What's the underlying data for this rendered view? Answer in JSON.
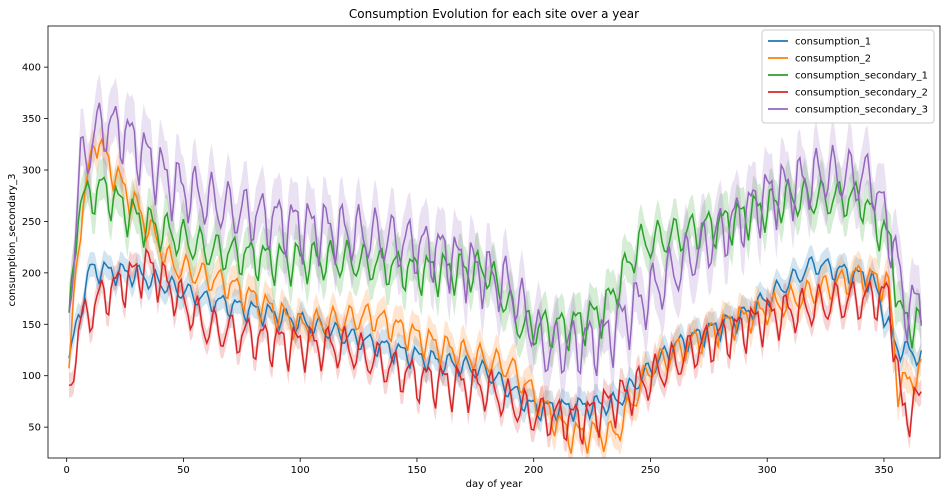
{
  "chart_data": {
    "type": "line",
    "title": "Consumption Evolution for each site over a year",
    "xlabel": "day of year",
    "ylabel": "consumption_secondary_3",
    "xlim": [
      -8,
      374
    ],
    "ylim": [
      20,
      440
    ],
    "xticks": [
      0,
      50,
      100,
      150,
      200,
      250,
      300,
      350
    ],
    "yticks": [
      50,
      100,
      150,
      200,
      250,
      300,
      350,
      400
    ],
    "grid": false,
    "legend_position": "top-right",
    "confidence_band": true,
    "x": {
      "start": 1,
      "end": 366,
      "step": 1
    },
    "series": [
      {
        "name": "consumption_1",
        "color": "#1f77b4",
        "keypoints": [
          [
            1,
            118
          ],
          [
            10,
            205
          ],
          [
            30,
            200
          ],
          [
            60,
            175
          ],
          [
            90,
            160
          ],
          [
            120,
            140
          ],
          [
            150,
            120
          ],
          [
            180,
            105
          ],
          [
            200,
            70
          ],
          [
            215,
            70
          ],
          [
            235,
            75
          ],
          [
            260,
            130
          ],
          [
            290,
            160
          ],
          [
            320,
            210
          ],
          [
            345,
            195
          ],
          [
            355,
            130
          ],
          [
            366,
            120
          ]
        ],
        "weekly_amplitude": 40,
        "band": 12
      },
      {
        "name": "consumption_2",
        "color": "#ff7f0e",
        "keypoints": [
          [
            1,
            105
          ],
          [
            5,
            235
          ],
          [
            12,
            335
          ],
          [
            20,
            300
          ],
          [
            30,
            265
          ],
          [
            45,
            210
          ],
          [
            70,
            190
          ],
          [
            100,
            150
          ],
          [
            130,
            160
          ],
          [
            160,
            130
          ],
          [
            190,
            110
          ],
          [
            205,
            70
          ],
          [
            215,
            45
          ],
          [
            235,
            45
          ],
          [
            250,
            110
          ],
          [
            280,
            150
          ],
          [
            310,
            175
          ],
          [
            340,
            200
          ],
          [
            352,
            190
          ],
          [
            356,
            90
          ],
          [
            366,
            105
          ]
        ],
        "weekly_amplitude": 55,
        "band": 15
      },
      {
        "name": "consumption_secondary_1",
        "color": "#2ca02c",
        "keypoints": [
          [
            1,
            150
          ],
          [
            5,
            270
          ],
          [
            15,
            285
          ],
          [
            30,
            255
          ],
          [
            60,
            225
          ],
          [
            90,
            215
          ],
          [
            120,
            215
          ],
          [
            150,
            205
          ],
          [
            180,
            205
          ],
          [
            195,
            150
          ],
          [
            215,
            150
          ],
          [
            230,
            165
          ],
          [
            245,
            230
          ],
          [
            280,
            250
          ],
          [
            310,
            275
          ],
          [
            340,
            275
          ],
          [
            353,
            230
          ],
          [
            357,
            160
          ],
          [
            366,
            150
          ]
        ],
        "weekly_amplitude": 75,
        "band": 20
      },
      {
        "name": "consumption_secondary_2",
        "color": "#d62728",
        "keypoints": [
          [
            1,
            78
          ],
          [
            5,
            150
          ],
          [
            15,
            180
          ],
          [
            35,
            210
          ],
          [
            60,
            150
          ],
          [
            90,
            135
          ],
          [
            120,
            130
          ],
          [
            150,
            100
          ],
          [
            180,
            90
          ],
          [
            200,
            65
          ],
          [
            220,
            60
          ],
          [
            240,
            85
          ],
          [
            270,
            130
          ],
          [
            300,
            160
          ],
          [
            330,
            175
          ],
          [
            352,
            180
          ],
          [
            358,
            65
          ],
          [
            366,
            80
          ]
        ],
        "weekly_amplitude": 80,
        "band": 12
      },
      {
        "name": "consumption_secondary_3",
        "color": "#9467bd",
        "keypoints": [
          [
            1,
            170
          ],
          [
            6,
            310
          ],
          [
            15,
            350
          ],
          [
            25,
            340
          ],
          [
            45,
            290
          ],
          [
            70,
            265
          ],
          [
            100,
            250
          ],
          [
            130,
            240
          ],
          [
            160,
            225
          ],
          [
            190,
            190
          ],
          [
            205,
            130
          ],
          [
            230,
            140
          ],
          [
            245,
            175
          ],
          [
            270,
            225
          ],
          [
            300,
            280
          ],
          [
            325,
            300
          ],
          [
            345,
            295
          ],
          [
            355,
            225
          ],
          [
            358,
            175
          ],
          [
            366,
            170
          ]
        ],
        "weekly_amplitude": 110,
        "band": 28
      }
    ]
  }
}
